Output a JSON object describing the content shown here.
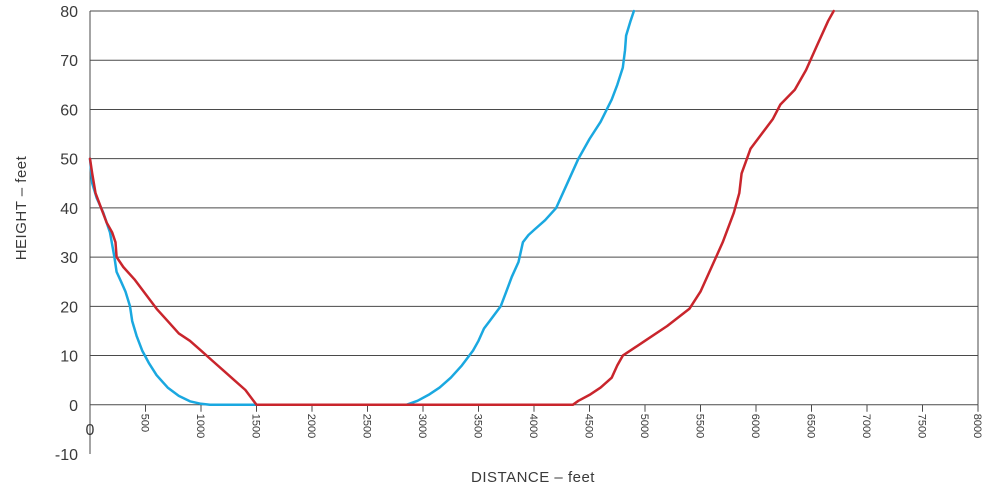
{
  "chart_data": {
    "type": "line",
    "xlabel": "DISTANCE – feet",
    "ylabel": "HEIGHT – feet",
    "xlim": [
      0,
      8000
    ],
    "ylim": [
      -10,
      80
    ],
    "x_ticks": [
      "0",
      "500",
      "1000",
      "1500",
      "2000",
      "2500",
      "3000",
      "3500",
      "4000",
      "4500",
      "5000",
      "5500",
      "6000",
      "6500",
      "7000",
      "7500",
      "8000"
    ],
    "y_ticks": [
      "80",
      "70",
      "60",
      "50",
      "40",
      "30",
      "20",
      "10",
      "0",
      "-10"
    ],
    "grid": "horizontal",
    "series": [
      {
        "color": "#1aa8e0",
        "points": [
          [
            0,
            50
          ],
          [
            20,
            45
          ],
          [
            60,
            42
          ],
          [
            120,
            39
          ],
          [
            180,
            35
          ],
          [
            220,
            30
          ],
          [
            240,
            27
          ],
          [
            280,
            25
          ],
          [
            320,
            23
          ],
          [
            360,
            20
          ],
          [
            380,
            17
          ],
          [
            420,
            14
          ],
          [
            470,
            11
          ],
          [
            530,
            8.5
          ],
          [
            600,
            6
          ],
          [
            700,
            3.5
          ],
          [
            800,
            1.8
          ],
          [
            900,
            0.7
          ],
          [
            1000,
            0.2
          ],
          [
            1080,
            0
          ],
          [
            1500,
            0
          ],
          [
            2000,
            0
          ],
          [
            2500,
            0
          ],
          [
            2850,
            0
          ],
          [
            2950,
            0.8
          ],
          [
            3050,
            2
          ],
          [
            3150,
            3.5
          ],
          [
            3250,
            5.5
          ],
          [
            3350,
            8
          ],
          [
            3450,
            11
          ],
          [
            3500,
            13
          ],
          [
            3550,
            15.5
          ],
          [
            3600,
            17
          ],
          [
            3650,
            18.5
          ],
          [
            3700,
            20
          ],
          [
            3750,
            23
          ],
          [
            3800,
            26
          ],
          [
            3860,
            29
          ],
          [
            3880,
            31
          ],
          [
            3900,
            33
          ],
          [
            3950,
            34.5
          ],
          [
            4000,
            35.5
          ],
          [
            4100,
            37.5
          ],
          [
            4200,
            40
          ],
          [
            4300,
            45
          ],
          [
            4400,
            50
          ],
          [
            4500,
            54
          ],
          [
            4600,
            57.5
          ],
          [
            4700,
            62
          ],
          [
            4750,
            65
          ],
          [
            4800,
            68.5
          ],
          [
            4820,
            72
          ],
          [
            4830,
            75
          ],
          [
            4870,
            78
          ],
          [
            4900,
            80
          ]
        ]
      },
      {
        "color": "#c9252c",
        "points": [
          [
            0,
            50
          ],
          [
            20,
            47
          ],
          [
            50,
            43
          ],
          [
            100,
            40
          ],
          [
            150,
            37
          ],
          [
            200,
            35
          ],
          [
            230,
            33
          ],
          [
            240,
            30
          ],
          [
            300,
            28
          ],
          [
            400,
            25.5
          ],
          [
            500,
            22.5
          ],
          [
            600,
            19.5
          ],
          [
            700,
            17
          ],
          [
            800,
            14.5
          ],
          [
            900,
            13
          ],
          [
            1000,
            11
          ],
          [
            1100,
            9
          ],
          [
            1200,
            7
          ],
          [
            1300,
            5
          ],
          [
            1400,
            3
          ],
          [
            1500,
            0
          ],
          [
            2000,
            0
          ],
          [
            3000,
            0
          ],
          [
            4000,
            0
          ],
          [
            4350,
            0
          ],
          [
            4400,
            0.8
          ],
          [
            4500,
            2
          ],
          [
            4600,
            3.5
          ],
          [
            4700,
            5.5
          ],
          [
            4750,
            8
          ],
          [
            4800,
            10
          ],
          [
            4900,
            11.5
          ],
          [
            5000,
            13
          ],
          [
            5200,
            16
          ],
          [
            5400,
            19.5
          ],
          [
            5500,
            23
          ],
          [
            5600,
            28
          ],
          [
            5700,
            33
          ],
          [
            5800,
            39
          ],
          [
            5850,
            43
          ],
          [
            5870,
            47
          ],
          [
            5950,
            52
          ],
          [
            6050,
            55
          ],
          [
            6150,
            58
          ],
          [
            6220,
            61
          ],
          [
            6350,
            64
          ],
          [
            6450,
            68
          ],
          [
            6550,
            73
          ],
          [
            6650,
            78
          ],
          [
            6700,
            80
          ]
        ]
      }
    ]
  }
}
